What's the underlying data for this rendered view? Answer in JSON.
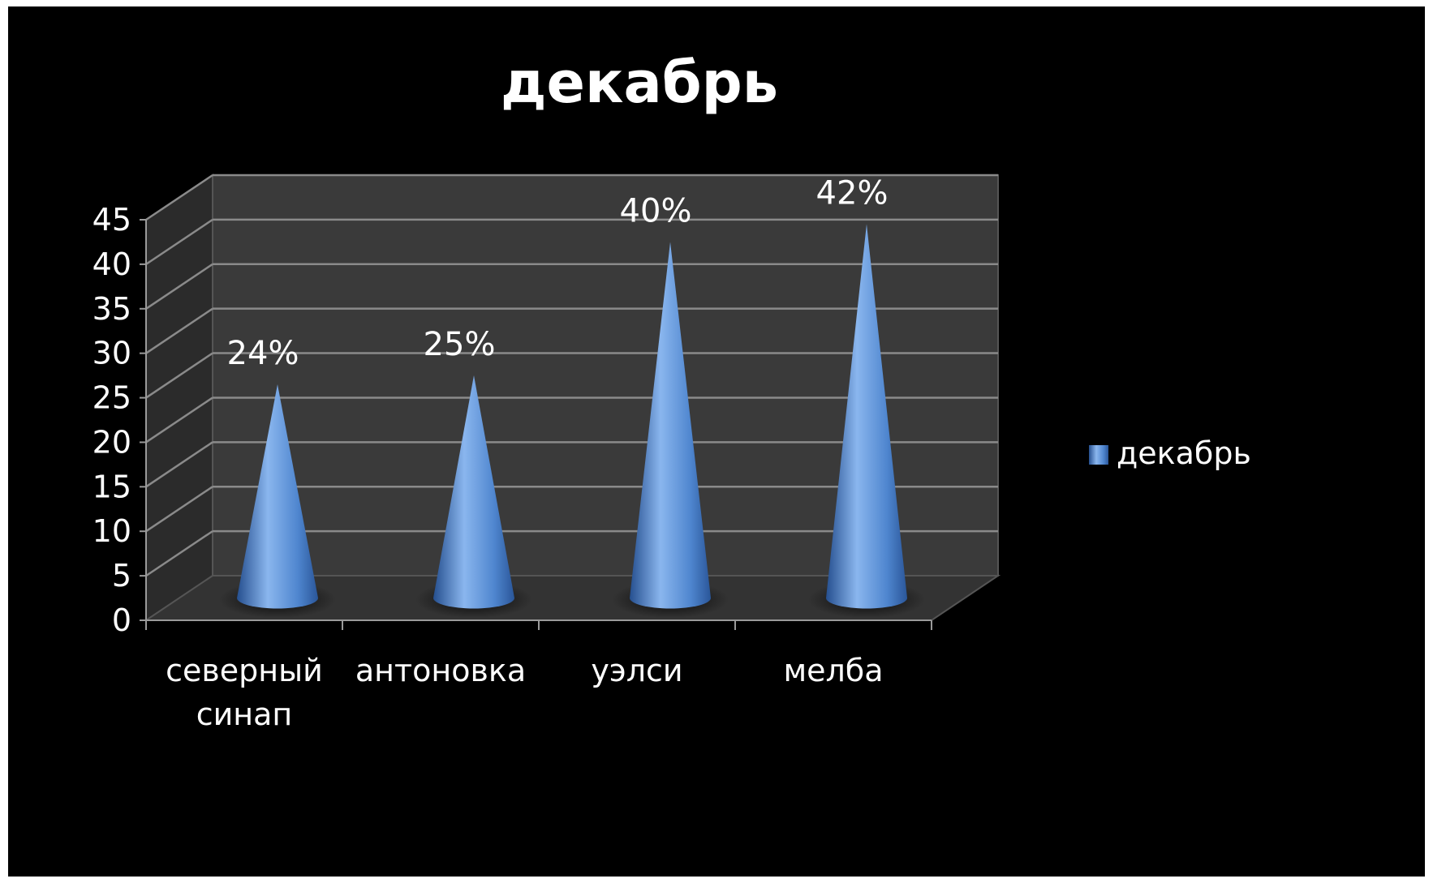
{
  "chart_data": {
    "type": "bar",
    "subtype": "3d-cone",
    "title": "декабрь",
    "categories": [
      "северный синап",
      "антоновка",
      "уэлси",
      "мелба"
    ],
    "category_lines": [
      [
        "северный",
        "синап"
      ],
      [
        "антоновка"
      ],
      [
        "уэлси"
      ],
      [
        "мелба"
      ]
    ],
    "series": [
      {
        "name": "декабрь",
        "values": [
          24,
          25,
          40,
          42
        ],
        "labels": [
          "24%",
          "25%",
          "40%",
          "42%"
        ]
      }
    ],
    "y_ticks": [
      "0",
      "5",
      "10",
      "15",
      "20",
      "25",
      "30",
      "35",
      "40",
      "45"
    ],
    "ylim": [
      0,
      45
    ],
    "grid": true,
    "legend_position": "right",
    "colors": {
      "background": "#000000",
      "back_wall": "#3a3a3a",
      "side_wall": "#2b2b2b",
      "floor": "#333333",
      "gridline": "#8a8a8a",
      "cone_light": "#8ab6ee",
      "cone_mid": "#4f86cf",
      "cone_dark": "#254f8f",
      "text": "#ffffff"
    }
  }
}
